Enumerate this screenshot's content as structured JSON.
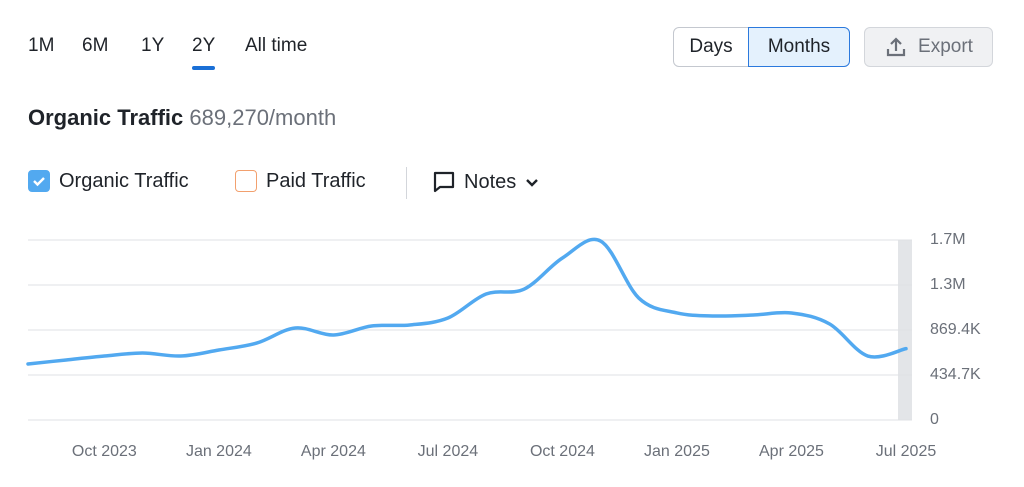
{
  "range_tabs": {
    "items": [
      "1M",
      "6M",
      "1Y",
      "2Y",
      "All time"
    ],
    "active": 3
  },
  "granularity": {
    "items": [
      "Days",
      "Months"
    ],
    "active": 1
  },
  "export": "Export",
  "header": {
    "title": "Organic Traffic",
    "value": "689,270/month"
  },
  "notes": "Notes",
  "chart_data": {
    "type": "line",
    "categories": [
      null,
      null,
      "Oct 2023",
      null,
      null,
      "Jan 2024",
      null,
      null,
      "Apr 2024",
      null,
      null,
      "Jul 2024",
      null,
      null,
      "Oct 2024",
      null,
      null,
      "Jan 2025",
      null,
      null,
      "Apr 2025",
      null,
      null,
      "Jul 2025"
    ],
    "series": [
      {
        "name": "Organic Traffic",
        "color": "#52a9f0",
        "checked": true,
        "values": [
          541000,
          580000,
          618000,
          647000,
          618000,
          676000,
          744000,
          889000,
          821000,
          908000,
          918000,
          985000,
          1217000,
          1265000,
          1565000,
          1729000,
          1178000,
          1034000,
          1005000,
          1014000,
          1034000,
          927000,
          618000,
          689270
        ]
      }
    ],
    "inactive_series": [
      {
        "name": "Paid Traffic",
        "color": "#f2a06e",
        "checked": false
      }
    ],
    "ylim": [
      0,
      1738800
    ],
    "yticks": [
      0,
      {
        "value": 434700,
        "label": "434.7K"
      },
      {
        "value": 869400,
        "label": "869.4K"
      },
      {
        "value": 1304100,
        "label": "1.3M"
      },
      {
        "value": 1738800,
        "label": "1.7M"
      }
    ],
    "grid": true,
    "y_axis_side": "right"
  }
}
